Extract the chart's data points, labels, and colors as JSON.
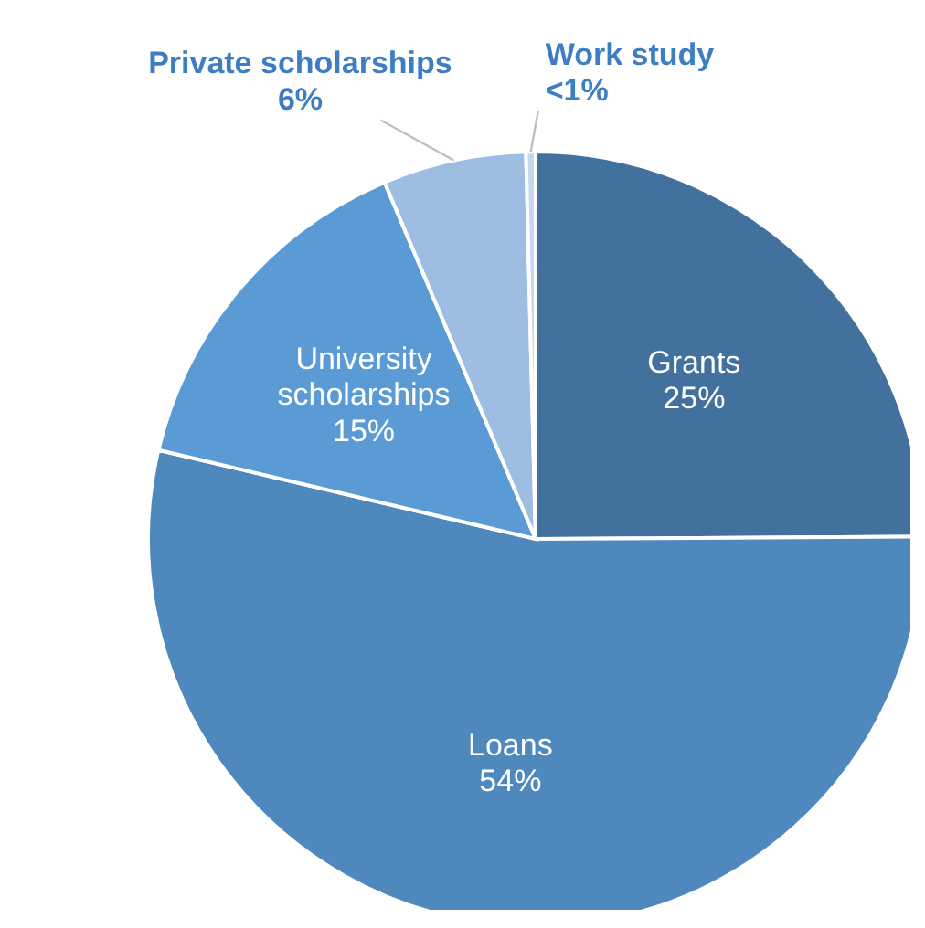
{
  "chart_data": {
    "type": "pie",
    "categories": [
      "Grants",
      "Loans",
      "University scholarships",
      "Private scholarships",
      "Work study"
    ],
    "values": [
      25,
      54,
      15,
      6,
      0.4
    ],
    "value_labels": [
      "25%",
      "54%",
      "15%",
      "6%",
      "<1%"
    ],
    "colors": [
      "#41719c",
      "#4e88bd",
      "#5b9bd5",
      "#9dbde2",
      "#c5d8ee"
    ],
    "legend": false
  }
}
